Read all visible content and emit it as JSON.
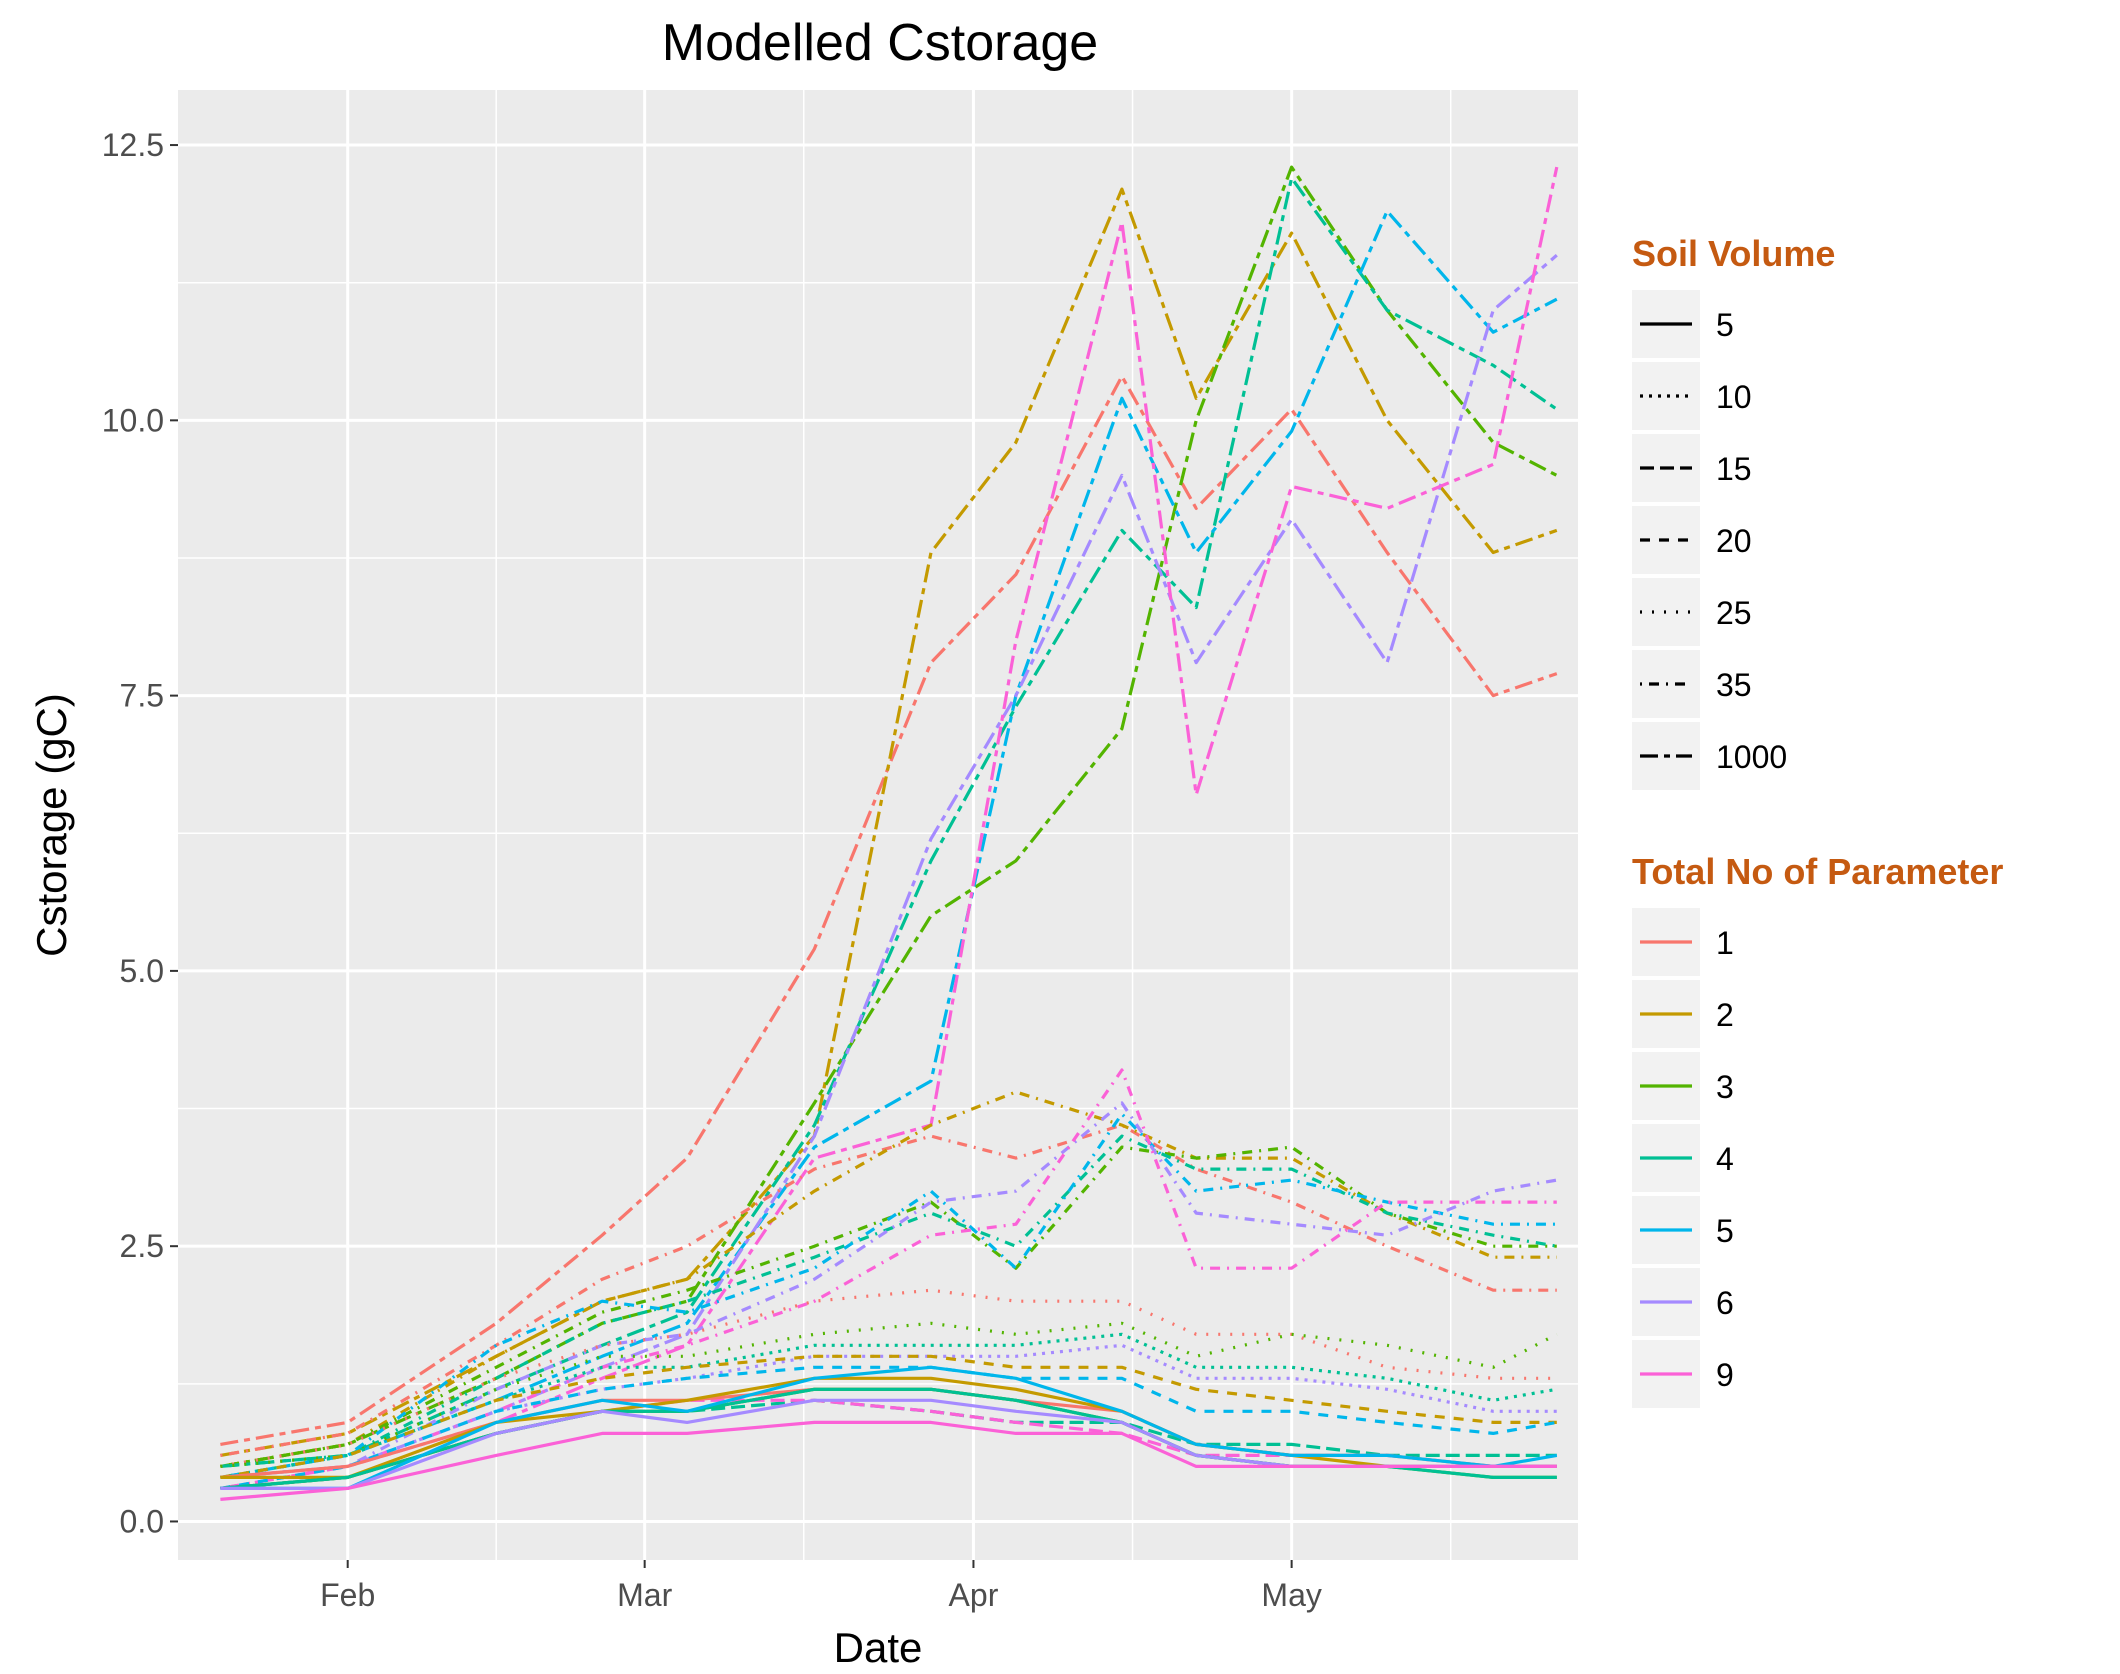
{
  "chart_data": {
    "type": "line",
    "title": "Modelled Cstorage",
    "xlabel": "Date",
    "ylabel": "Cstorage (gC)",
    "x_ticks": [
      "Feb",
      "Mar",
      "Apr",
      "May"
    ],
    "y_ticks": [
      "0.0",
      "2.5",
      "5.0",
      "7.5",
      "10.0",
      "12.5"
    ],
    "ylim": [
      -0.35,
      13.0
    ],
    "xlim": [
      "2015-01-16",
      "2015-05-28"
    ],
    "grid": true,
    "legend_position": "right",
    "legends": {
      "linetype": {
        "title": "Soil Volume",
        "entries": [
          {
            "label": "5",
            "dash": "solid"
          },
          {
            "label": "10",
            "dash": "dotted-dense"
          },
          {
            "label": "15",
            "dash": "longdash"
          },
          {
            "label": "20",
            "dash": "dashed"
          },
          {
            "label": "25",
            "dash": "dotted"
          },
          {
            "label": "35",
            "dash": "dotdash"
          },
          {
            "label": "1000",
            "dash": "twodash"
          }
        ]
      },
      "color": {
        "title": "Total No of Parameter",
        "entries": [
          {
            "label": "1",
            "color": "#F8766D"
          },
          {
            "label": "2",
            "color": "#C49A00"
          },
          {
            "label": "3",
            "color": "#53B400"
          },
          {
            "label": "4",
            "color": "#00C094"
          },
          {
            "label": "5",
            "color": "#00B6EB"
          },
          {
            "label": "6",
            "color": "#A58AFF"
          },
          {
            "label": "9",
            "color": "#FB61D7"
          }
        ]
      }
    },
    "x_dates": [
      "2015-01-20",
      "2015-02-01",
      "2015-02-15",
      "2015-02-25",
      "2015-03-05",
      "2015-03-17",
      "2015-03-28",
      "2015-04-05",
      "2015-04-15",
      "2015-04-22",
      "2015-05-01",
      "2015-05-10",
      "2015-05-20",
      "2015-05-26"
    ],
    "series": [
      {
        "soil_volume": "1000",
        "parameters": "1",
        "values": [
          0.7,
          0.9,
          1.8,
          2.6,
          3.3,
          5.2,
          7.8,
          8.6,
          10.4,
          9.2,
          10.1,
          8.8,
          7.5,
          7.7
        ]
      },
      {
        "soil_volume": "1000",
        "parameters": "2",
        "values": [
          0.6,
          0.8,
          1.5,
          2.0,
          2.2,
          3.5,
          8.8,
          9.8,
          12.1,
          10.2,
          11.7,
          10.0,
          8.8,
          9.0
        ]
      },
      {
        "soil_volume": "1000",
        "parameters": "3",
        "values": [
          0.5,
          0.7,
          1.3,
          1.8,
          2.0,
          3.8,
          5.5,
          6.0,
          7.2,
          10.0,
          12.3,
          11.0,
          9.8,
          9.5
        ]
      },
      {
        "soil_volume": "1000",
        "parameters": "4",
        "values": [
          0.5,
          0.6,
          1.2,
          1.6,
          1.9,
          3.6,
          6.0,
          7.4,
          9.0,
          8.3,
          12.2,
          11.0,
          10.5,
          10.1
        ]
      },
      {
        "soil_volume": "1000",
        "parameters": "5",
        "values": [
          0.4,
          0.6,
          1.1,
          1.5,
          1.8,
          3.4,
          4.0,
          7.5,
          10.2,
          8.8,
          9.9,
          11.9,
          10.8,
          11.1
        ]
      },
      {
        "soil_volume": "1000",
        "parameters": "6",
        "values": [
          0.4,
          0.5,
          1.0,
          1.4,
          1.7,
          3.5,
          6.2,
          7.5,
          9.5,
          7.8,
          9.1,
          7.8,
          11.0,
          11.5
        ]
      },
      {
        "soil_volume": "1000",
        "parameters": "9",
        "values": [
          0.3,
          0.5,
          0.9,
          1.3,
          1.6,
          3.3,
          3.6,
          8.0,
          11.8,
          6.6,
          9.4,
          9.2,
          9.6,
          12.3
        ]
      },
      {
        "soil_volume": "35",
        "parameters": "1",
        "values": [
          0.6,
          0.8,
          1.6,
          2.2,
          2.5,
          3.2,
          3.5,
          3.3,
          3.6,
          3.2,
          2.9,
          2.5,
          2.1,
          2.1
        ]
      },
      {
        "soil_volume": "35",
        "parameters": "2",
        "values": [
          0.5,
          0.7,
          1.5,
          2.0,
          2.2,
          3.0,
          3.6,
          3.9,
          3.6,
          3.3,
          3.3,
          2.8,
          2.4,
          2.4
        ]
      },
      {
        "soil_volume": "35",
        "parameters": "3",
        "values": [
          0.5,
          0.7,
          1.4,
          1.9,
          2.1,
          2.5,
          2.9,
          2.3,
          3.4,
          3.3,
          3.4,
          2.8,
          2.5,
          2.5
        ]
      },
      {
        "soil_volume": "35",
        "parameters": "4",
        "values": [
          0.5,
          0.6,
          1.3,
          1.8,
          2.0,
          2.4,
          2.8,
          2.5,
          3.5,
          3.2,
          3.2,
          2.8,
          2.6,
          2.5
        ]
      },
      {
        "soil_volume": "35",
        "parameters": "5",
        "values": [
          0.4,
          0.6,
          1.6,
          2.0,
          1.9,
          2.3,
          3.0,
          2.3,
          3.7,
          3.0,
          3.1,
          2.9,
          2.7,
          2.7
        ]
      },
      {
        "soil_volume": "35",
        "parameters": "6",
        "values": [
          0.4,
          0.5,
          1.2,
          1.6,
          1.7,
          2.2,
          2.9,
          3.0,
          3.8,
          2.8,
          2.7,
          2.6,
          3.0,
          3.1
        ]
      },
      {
        "soil_volume": "35",
        "parameters": "9",
        "values": [
          0.3,
          0.5,
          1.0,
          1.4,
          1.6,
          2.0,
          2.6,
          2.7,
          4.1,
          2.3,
          2.3,
          2.9,
          2.9,
          2.9
        ]
      },
      {
        "soil_volume": "25",
        "parameters": "1",
        "values": [
          0.5,
          0.7,
          1.3,
          1.6,
          1.7,
          2.0,
          2.1,
          2.0,
          2.0,
          1.7,
          1.7,
          1.4,
          1.3,
          1.3
        ]
      },
      {
        "soil_volume": "25",
        "parameters": "3",
        "values": [
          0.5,
          0.6,
          1.2,
          1.5,
          1.5,
          1.7,
          1.8,
          1.7,
          1.8,
          1.5,
          1.7,
          1.6,
          1.4,
          1.7
        ]
      },
      {
        "soil_volume": "10",
        "parameters": "4",
        "values": [
          0.4,
          0.6,
          1.1,
          1.4,
          1.4,
          1.6,
          1.6,
          1.6,
          1.7,
          1.4,
          1.4,
          1.3,
          1.1,
          1.2
        ]
      },
      {
        "soil_volume": "10",
        "parameters": "6",
        "values": [
          0.4,
          0.5,
          1.0,
          1.2,
          1.3,
          1.5,
          1.5,
          1.5,
          1.6,
          1.3,
          1.3,
          1.2,
          1.0,
          1.0
        ]
      },
      {
        "soil_volume": "20",
        "parameters": "2",
        "values": [
          0.4,
          0.6,
          1.1,
          1.3,
          1.4,
          1.5,
          1.5,
          1.4,
          1.4,
          1.2,
          1.1,
          1.0,
          0.9,
          0.9
        ]
      },
      {
        "soil_volume": "20",
        "parameters": "5",
        "values": [
          0.3,
          0.5,
          1.0,
          1.2,
          1.3,
          1.4,
          1.4,
          1.3,
          1.3,
          1.0,
          1.0,
          0.9,
          0.8,
          0.9
        ]
      },
      {
        "soil_volume": "15",
        "parameters": "4",
        "values": [
          0.3,
          0.4,
          0.8,
          1.0,
          1.0,
          1.1,
          1.0,
          0.9,
          0.9,
          0.7,
          0.7,
          0.6,
          0.6,
          0.6
        ]
      },
      {
        "soil_volume": "15",
        "parameters": "9",
        "values": [
          0.3,
          0.4,
          0.8,
          1.0,
          1.1,
          1.1,
          1.0,
          0.9,
          0.8,
          0.6,
          0.6,
          0.6,
          0.5,
          0.5
        ]
      },
      {
        "soil_volume": "5",
        "parameters": "1",
        "values": [
          0.4,
          0.5,
          0.9,
          1.1,
          1.1,
          1.2,
          1.2,
          1.1,
          1.0,
          0.7,
          0.6,
          0.6,
          0.5,
          0.5
        ]
      },
      {
        "soil_volume": "5",
        "parameters": "2",
        "values": [
          0.4,
          0.4,
          0.9,
          1.0,
          1.1,
          1.3,
          1.3,
          1.2,
          1.0,
          0.7,
          0.6,
          0.5,
          0.5,
          0.5
        ]
      },
      {
        "soil_volume": "5",
        "parameters": "3",
        "values": [
          0.3,
          0.4,
          0.8,
          1.0,
          1.0,
          1.2,
          1.2,
          1.1,
          0.9,
          0.6,
          0.5,
          0.5,
          0.4,
          0.4
        ]
      },
      {
        "soil_volume": "5",
        "parameters": "4",
        "values": [
          0.3,
          0.4,
          0.8,
          1.0,
          1.0,
          1.2,
          1.2,
          1.1,
          0.9,
          0.6,
          0.5,
          0.5,
          0.4,
          0.4
        ]
      },
      {
        "soil_volume": "5",
        "parameters": "5",
        "values": [
          0.3,
          0.3,
          0.9,
          1.1,
          1.0,
          1.3,
          1.4,
          1.3,
          1.0,
          0.7,
          0.6,
          0.6,
          0.5,
          0.6
        ]
      },
      {
        "soil_volume": "5",
        "parameters": "6",
        "values": [
          0.3,
          0.3,
          0.8,
          1.0,
          0.9,
          1.1,
          1.1,
          1.0,
          0.9,
          0.6,
          0.5,
          0.5,
          0.5,
          0.5
        ]
      },
      {
        "soil_volume": "5",
        "parameters": "9",
        "values": [
          0.2,
          0.3,
          0.6,
          0.8,
          0.8,
          0.9,
          0.9,
          0.8,
          0.8,
          0.5,
          0.5,
          0.5,
          0.5,
          0.5
        ]
      }
    ]
  }
}
